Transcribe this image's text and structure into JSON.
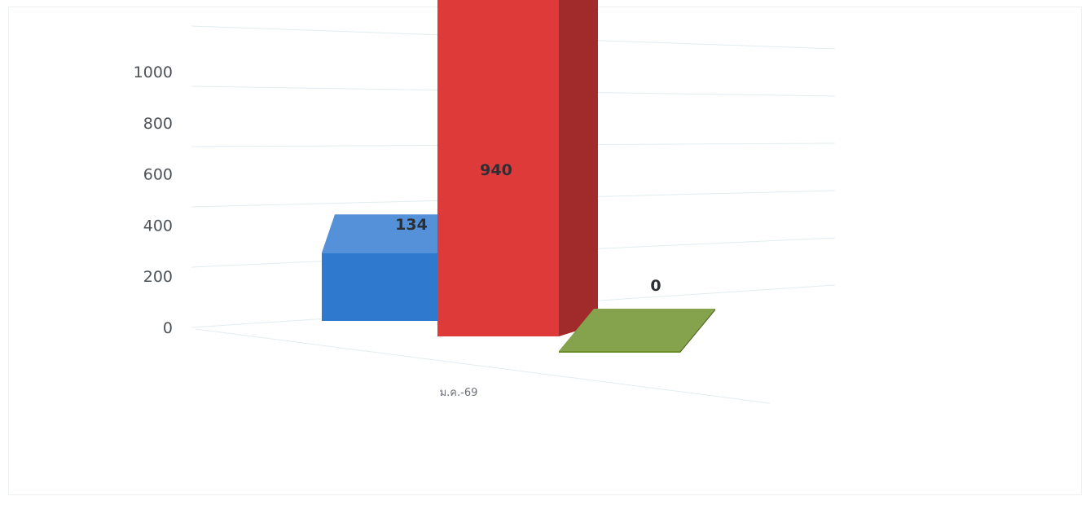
{
  "chart_data": {
    "type": "bar",
    "categories": [
      "ม.ค.-69"
    ],
    "ylim": [
      0,
      1000
    ],
    "yticks": [
      0,
      200,
      400,
      600,
      800,
      1000
    ],
    "grid": true,
    "series": [
      {
        "values": [
          134
        ],
        "color": "#2f79cf"
      },
      {
        "values": [
          940
        ],
        "color": "#df3a3a"
      },
      {
        "values": [
          0
        ],
        "color": "#6a8f25"
      }
    ]
  }
}
